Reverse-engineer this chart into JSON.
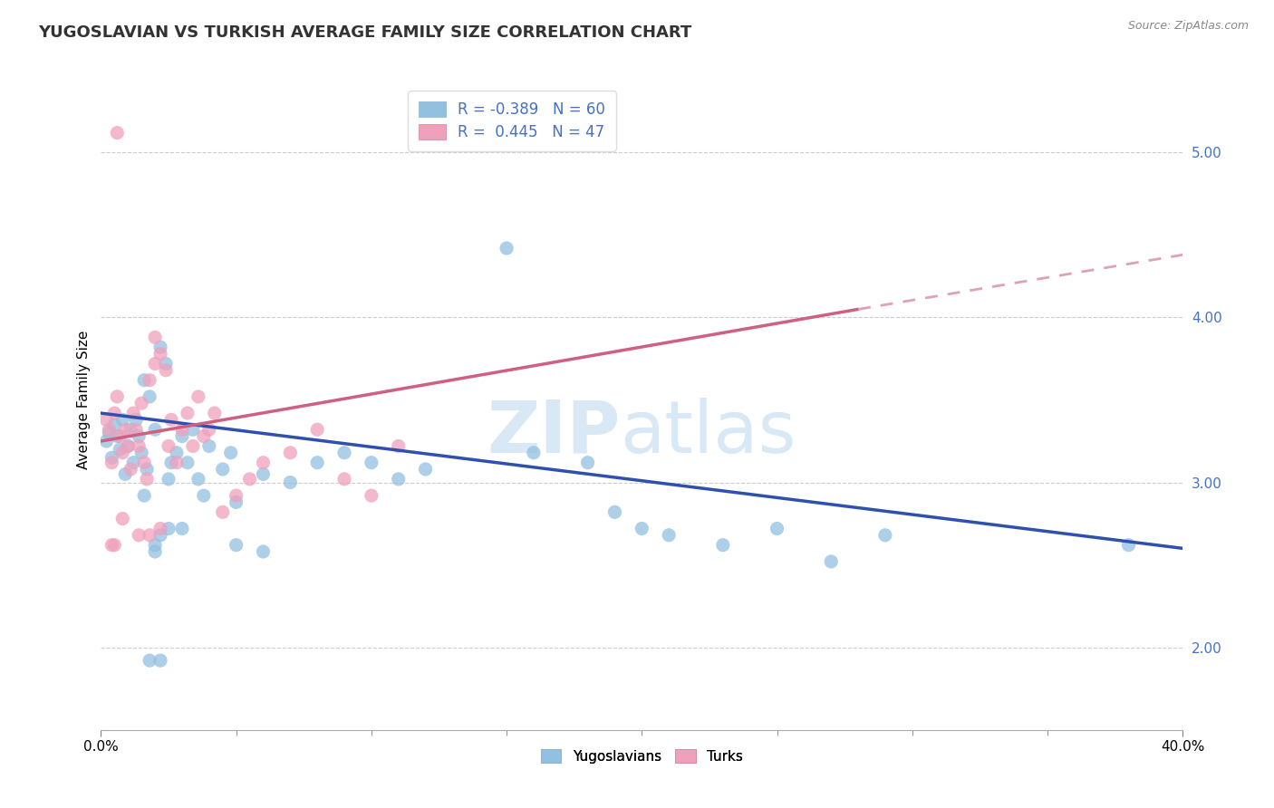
{
  "title": "YUGOSLAVIAN VS TURKISH AVERAGE FAMILY SIZE CORRELATION CHART",
  "source": "Source: ZipAtlas.com",
  "ylabel": "Average Family Size",
  "xlim": [
    0.0,
    0.4
  ],
  "ylim": [
    1.5,
    5.5
  ],
  "yticks": [
    2.0,
    3.0,
    4.0,
    5.0
  ],
  "xticks": [
    0.0,
    0.4
  ],
  "xtick_labels": [
    "0.0%",
    "40.0%"
  ],
  "blue_scatter_color": "#92c0e0",
  "pink_scatter_color": "#f0a0bb",
  "blue_line_color": "#3050b0",
  "pink_line_color": "#d06080",
  "pink_dash_color": "#e0a0b8",
  "ytick_color": "#4472c4",
  "watermark_text": "ZIPatlas",
  "watermark_color": "#d8e8f5",
  "background_color": "#ffffff",
  "grid_color": "#cccccc",
  "title_fontsize": 13,
  "axis_label_fontsize": 11,
  "tick_fontsize": 11,
  "legend_fontsize": 12,
  "R_blue": -0.389,
  "N_blue": 60,
  "R_pink": 0.445,
  "N_pink": 47,
  "blue_line": {
    "x0": 0.0,
    "y0": 3.42,
    "x1": 0.4,
    "y1": 2.6
  },
  "pink_line_solid": {
    "x0": 0.0,
    "y0": 3.25,
    "x1": 0.28,
    "y1": 4.05
  },
  "pink_line_dash": {
    "x0": 0.28,
    "y0": 4.05,
    "x1": 0.4,
    "y1": 4.38
  },
  "blue_points": [
    [
      0.002,
      3.25
    ],
    [
      0.003,
      3.3
    ],
    [
      0.004,
      3.15
    ],
    [
      0.005,
      3.35
    ],
    [
      0.006,
      3.28
    ],
    [
      0.007,
      3.2
    ],
    [
      0.008,
      3.38
    ],
    [
      0.009,
      3.05
    ],
    [
      0.01,
      3.22
    ],
    [
      0.011,
      3.32
    ],
    [
      0.012,
      3.12
    ],
    [
      0.013,
      3.38
    ],
    [
      0.014,
      3.28
    ],
    [
      0.015,
      3.18
    ],
    [
      0.016,
      3.62
    ],
    [
      0.017,
      3.08
    ],
    [
      0.018,
      3.52
    ],
    [
      0.02,
      3.32
    ],
    [
      0.022,
      3.82
    ],
    [
      0.024,
      3.72
    ],
    [
      0.025,
      3.02
    ],
    [
      0.026,
      3.12
    ],
    [
      0.028,
      3.18
    ],
    [
      0.03,
      3.28
    ],
    [
      0.032,
      3.12
    ],
    [
      0.034,
      3.32
    ],
    [
      0.036,
      3.02
    ],
    [
      0.038,
      2.92
    ],
    [
      0.04,
      3.22
    ],
    [
      0.045,
      3.08
    ],
    [
      0.048,
      3.18
    ],
    [
      0.05,
      2.88
    ],
    [
      0.06,
      3.05
    ],
    [
      0.07,
      3.0
    ],
    [
      0.08,
      3.12
    ],
    [
      0.09,
      3.18
    ],
    [
      0.1,
      3.12
    ],
    [
      0.11,
      3.02
    ],
    [
      0.12,
      3.08
    ],
    [
      0.15,
      4.42
    ],
    [
      0.16,
      3.18
    ],
    [
      0.18,
      3.12
    ],
    [
      0.19,
      2.82
    ],
    [
      0.2,
      2.72
    ],
    [
      0.21,
      2.68
    ],
    [
      0.23,
      2.62
    ],
    [
      0.25,
      2.72
    ],
    [
      0.27,
      2.52
    ],
    [
      0.29,
      2.68
    ],
    [
      0.02,
      2.62
    ],
    [
      0.022,
      2.68
    ],
    [
      0.03,
      2.72
    ],
    [
      0.05,
      2.62
    ],
    [
      0.06,
      2.58
    ],
    [
      0.38,
      2.62
    ],
    [
      0.016,
      2.92
    ],
    [
      0.02,
      2.58
    ],
    [
      0.025,
      2.72
    ],
    [
      0.018,
      1.92
    ],
    [
      0.022,
      1.92
    ]
  ],
  "pink_points": [
    [
      0.002,
      3.38
    ],
    [
      0.003,
      3.32
    ],
    [
      0.004,
      3.12
    ],
    [
      0.005,
      3.42
    ],
    [
      0.006,
      3.52
    ],
    [
      0.007,
      3.28
    ],
    [
      0.008,
      3.18
    ],
    [
      0.009,
      3.32
    ],
    [
      0.01,
      3.22
    ],
    [
      0.011,
      3.08
    ],
    [
      0.012,
      3.42
    ],
    [
      0.013,
      3.32
    ],
    [
      0.014,
      3.22
    ],
    [
      0.015,
      3.48
    ],
    [
      0.016,
      3.12
    ],
    [
      0.017,
      3.02
    ],
    [
      0.018,
      3.62
    ],
    [
      0.02,
      3.72
    ],
    [
      0.022,
      3.78
    ],
    [
      0.024,
      3.68
    ],
    [
      0.025,
      3.22
    ],
    [
      0.026,
      3.38
    ],
    [
      0.028,
      3.12
    ],
    [
      0.03,
      3.32
    ],
    [
      0.032,
      3.42
    ],
    [
      0.034,
      3.22
    ],
    [
      0.036,
      3.52
    ],
    [
      0.038,
      3.28
    ],
    [
      0.04,
      3.32
    ],
    [
      0.042,
      3.42
    ],
    [
      0.045,
      2.82
    ],
    [
      0.05,
      2.92
    ],
    [
      0.055,
      3.02
    ],
    [
      0.06,
      3.12
    ],
    [
      0.07,
      3.18
    ],
    [
      0.08,
      3.32
    ],
    [
      0.09,
      3.02
    ],
    [
      0.1,
      2.92
    ],
    [
      0.11,
      3.22
    ],
    [
      0.005,
      2.62
    ],
    [
      0.008,
      2.78
    ],
    [
      0.006,
      5.12
    ],
    [
      0.02,
      3.88
    ],
    [
      0.018,
      2.68
    ],
    [
      0.004,
      2.62
    ],
    [
      0.014,
      2.68
    ],
    [
      0.022,
      2.72
    ]
  ]
}
